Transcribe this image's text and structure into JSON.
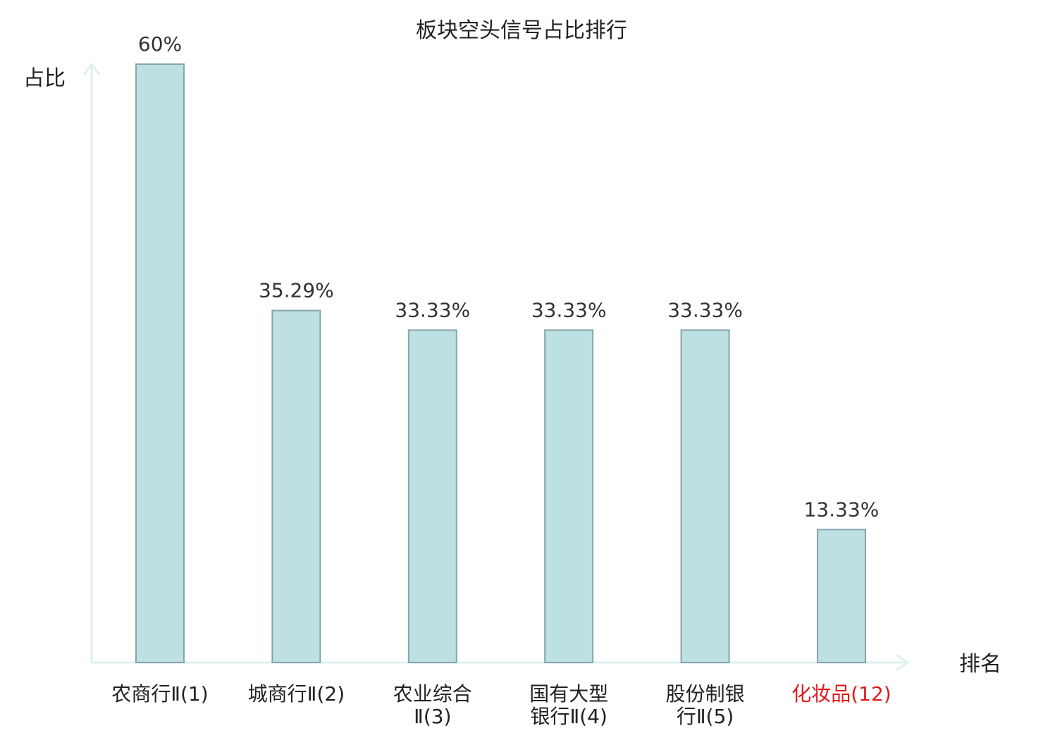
{
  "chart_data": {
    "type": "bar",
    "title": "板块空头信号占比排行",
    "ylabel": "占比",
    "xlabel": "排名",
    "categories": [
      [
        "农商行Ⅱ(1)"
      ],
      [
        "城商行Ⅱ(2)"
      ],
      [
        "农业综合",
        "Ⅱ(3)"
      ],
      [
        "国有大型",
        "银行Ⅱ(4)"
      ],
      [
        "股份制银",
        "行Ⅱ(5)"
      ],
      [
        "化妆品(12)"
      ]
    ],
    "values": [
      60,
      35.29,
      33.33,
      33.33,
      33.33,
      13.33
    ],
    "value_labels": [
      "60%",
      "35.29%",
      "33.33%",
      "33.33%",
      "33.33%",
      "13.33%"
    ],
    "highlight_index": 5,
    "ylim": [
      0,
      60
    ],
    "grid": false,
    "legend": "none"
  },
  "colors": {
    "bar_fill": "#bde0e3",
    "bar_stroke": "#86a5a8",
    "axis": "#dff0ee",
    "category_text": "#222222",
    "highlight_text": "#e0191b",
    "value_text": "#333333"
  }
}
